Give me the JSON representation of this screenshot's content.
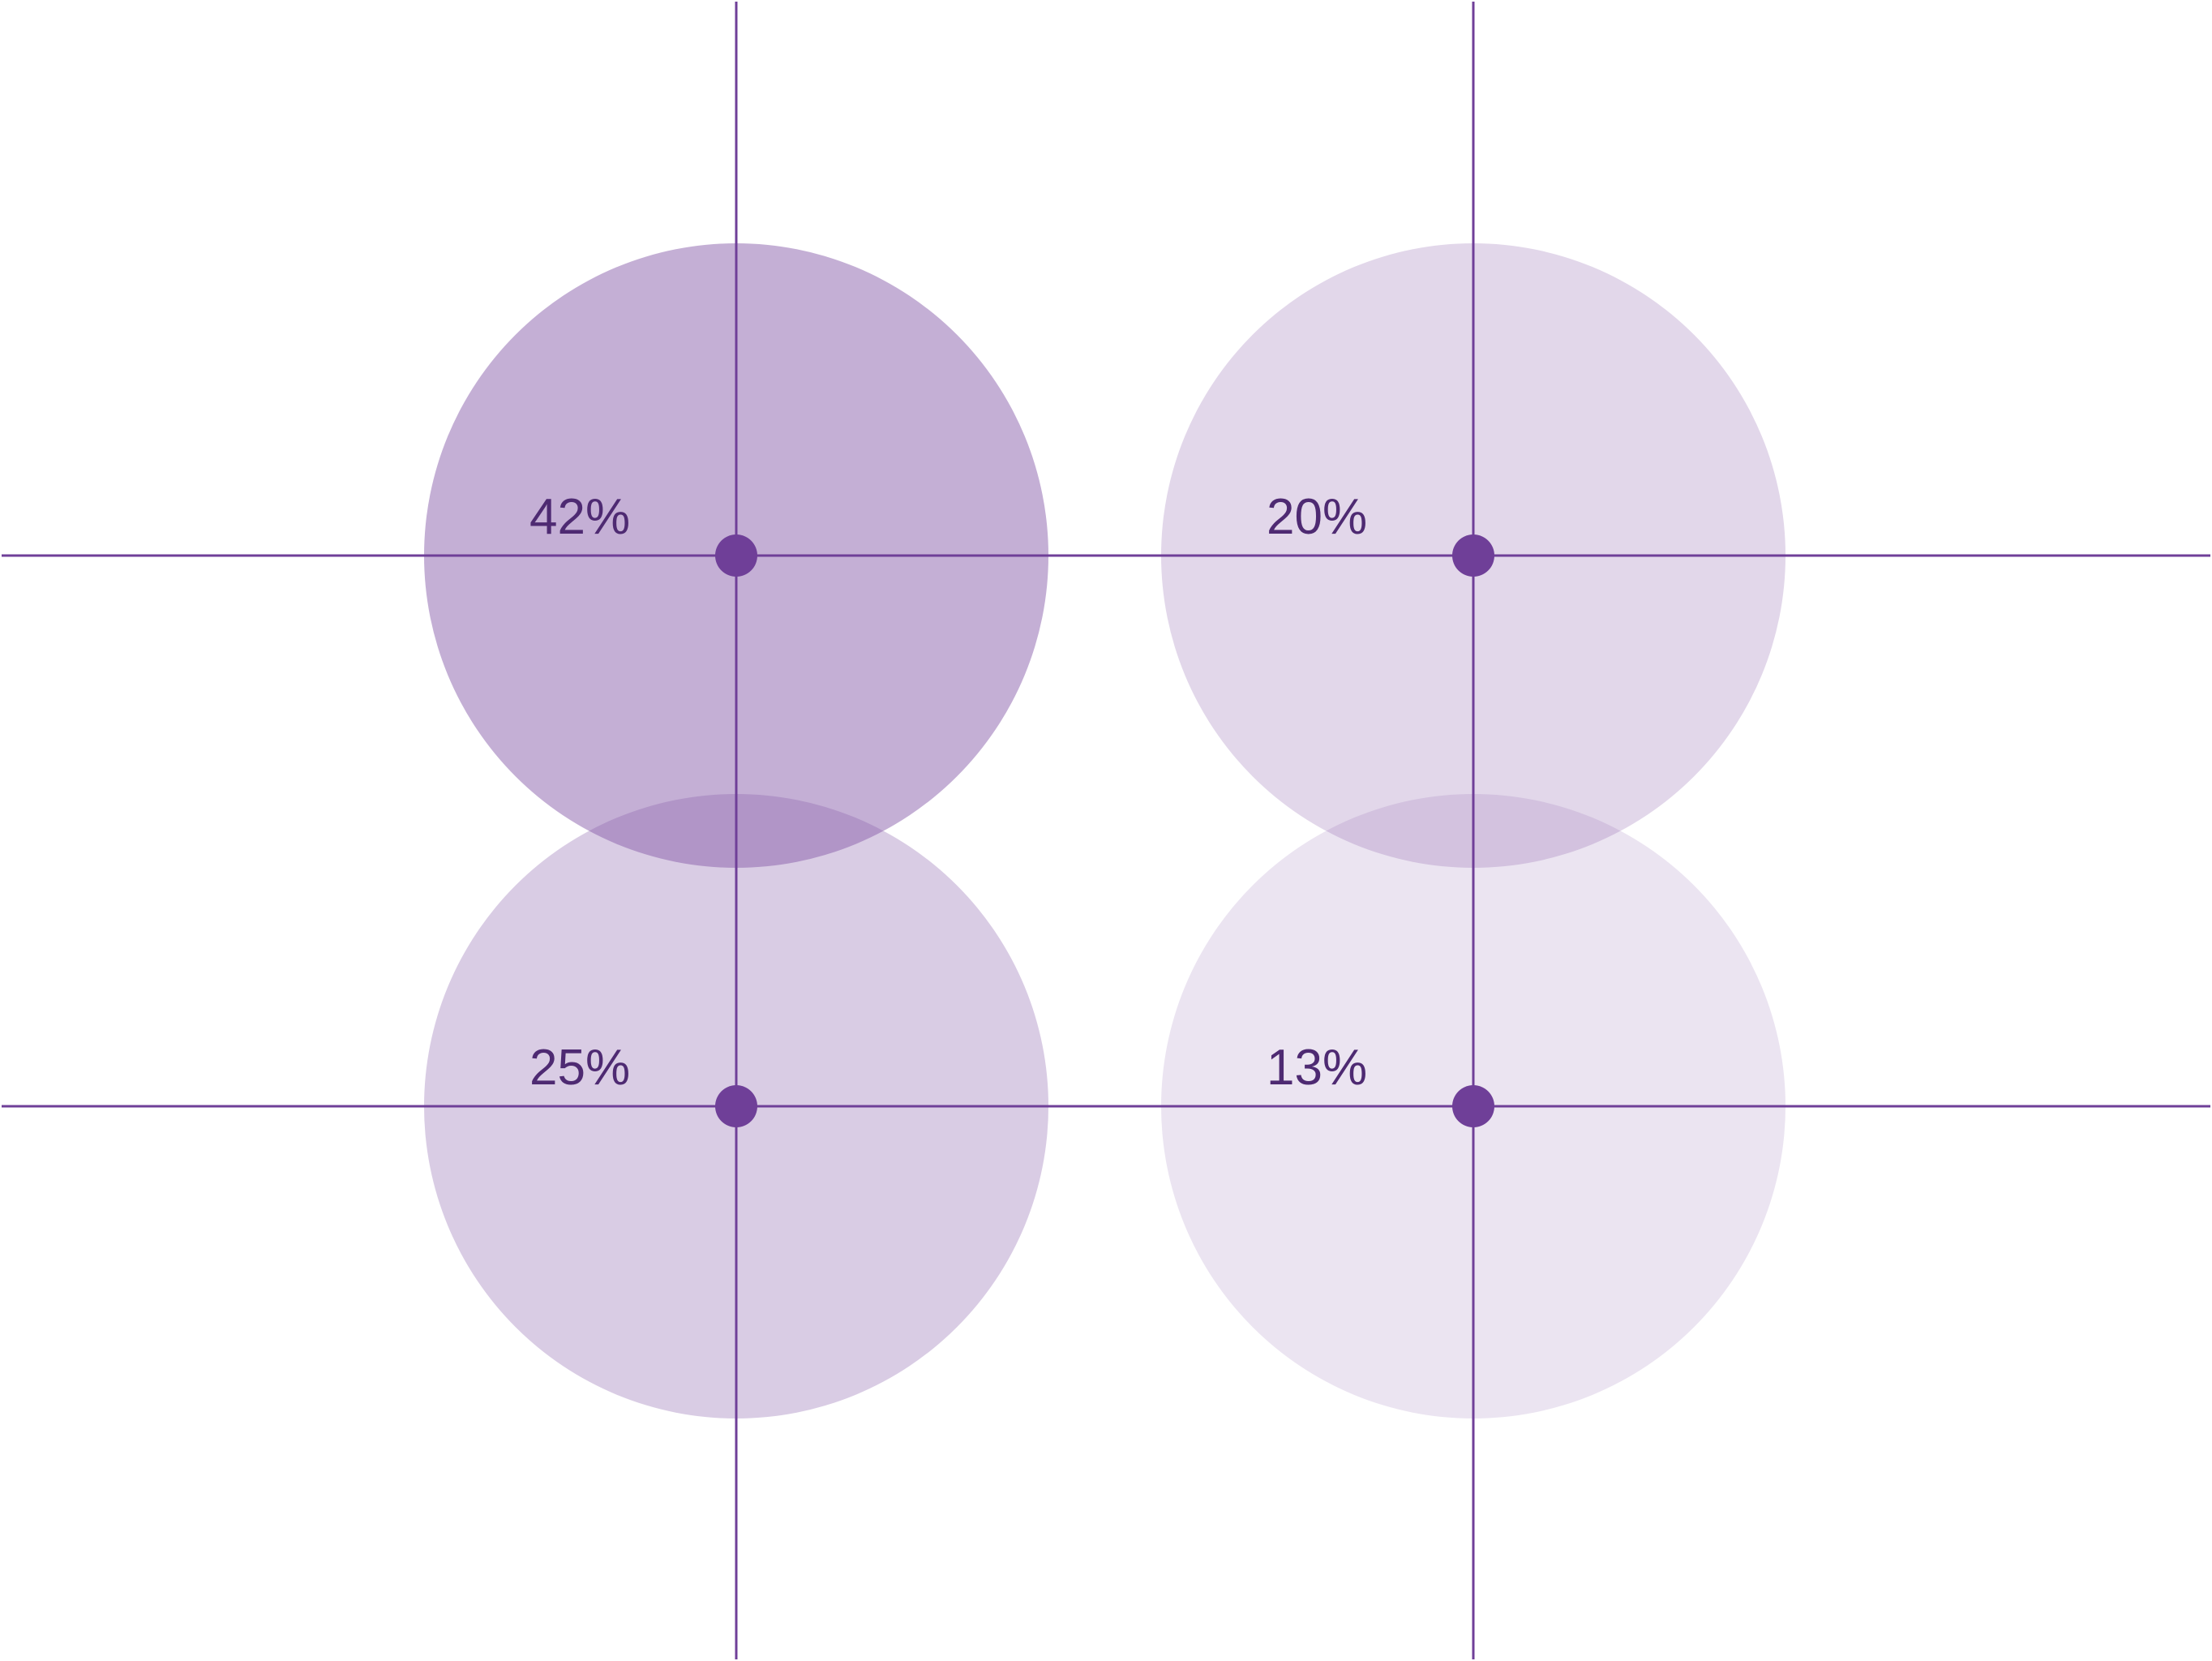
{
  "colors": {
    "line": "#6f3f98",
    "dot": "#6f3f98",
    "label": "#4e2a72",
    "circle": "#8a5fab"
  },
  "chart_data": {
    "type": "bubble-quadrant",
    "items": [
      {
        "label": "42%",
        "value": 42,
        "row": 0,
        "col": 0,
        "opacity": 0.5
      },
      {
        "label": "20%",
        "value": 20,
        "row": 0,
        "col": 1,
        "opacity": 0.25
      },
      {
        "label": "25%",
        "value": 25,
        "row": 1,
        "col": 0,
        "opacity": 0.32
      },
      {
        "label": "13%",
        "value": 13,
        "row": 1,
        "col": 1,
        "opacity": 0.17
      }
    ]
  }
}
